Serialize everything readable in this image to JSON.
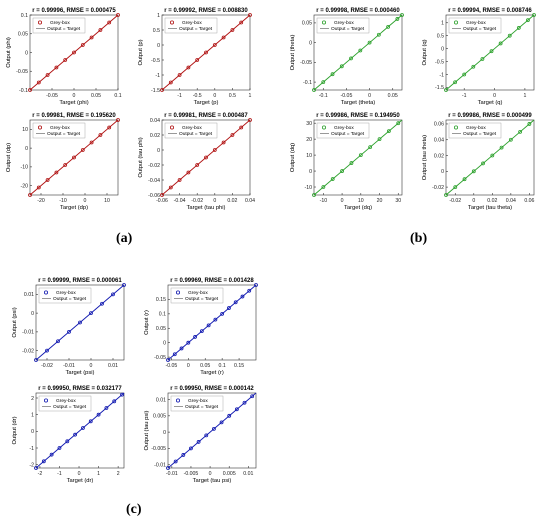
{
  "panel_labels": {
    "a": "(a)",
    "b": "(b)",
    "c": "(c)"
  },
  "legend_labels": {
    "points": "Grey-box",
    "line": "Output = Target"
  },
  "colors": {
    "a": "#b01010",
    "b": "#2aa02a",
    "c": "#1018b0",
    "fit_line": "#000000"
  },
  "chart_data": [
    {
      "type": "scatter",
      "group": "a",
      "title": "r = 0.99996, RMSE = 0.000475",
      "xlabel": "Target (phi)",
      "ylabel": "Output (phi)",
      "xlim": [
        -0.1,
        0.1
      ],
      "ylim": [
        -0.1,
        0.1
      ],
      "xticks": [
        -0.05,
        0,
        0.05,
        0.1
      ],
      "yticks": [
        -0.1,
        -0.05,
        0,
        0.05,
        0.1
      ],
      "x": [
        -0.1,
        -0.08,
        -0.06,
        -0.04,
        -0.02,
        0,
        0.02,
        0.04,
        0.06,
        0.08,
        0.1
      ],
      "y": [
        -0.1,
        -0.08,
        -0.06,
        -0.04,
        -0.02,
        0,
        0.02,
        0.04,
        0.06,
        0.08,
        0.1
      ]
    },
    {
      "type": "scatter",
      "group": "a",
      "title": "r = 0.99992, RMSE = 0.008830",
      "xlabel": "Target (p)",
      "ylabel": "Output (p)",
      "xlim": [
        -1.5,
        1
      ],
      "ylim": [
        -1.5,
        1
      ],
      "xticks": [
        -1,
        -0.5,
        0,
        0.5,
        1
      ],
      "yticks": [
        -1.5,
        -1,
        -0.5,
        0,
        0.5,
        1
      ],
      "x": [
        -1.5,
        -1.25,
        -1,
        -0.75,
        -0.5,
        -0.25,
        0,
        0.25,
        0.5,
        0.75,
        1
      ],
      "y": [
        -1.5,
        -1.25,
        -1,
        -0.75,
        -0.5,
        -0.25,
        0,
        0.25,
        0.5,
        0.75,
        1
      ]
    },
    {
      "type": "scatter",
      "group": "a",
      "title": "r = 0.99981, RMSE = 0.195620",
      "xlabel": "Target (dp)",
      "ylabel": "Output (dp)",
      "xlim": [
        -25,
        15
      ],
      "ylim": [
        -25,
        15
      ],
      "xticks": [
        -20,
        -10,
        0,
        10
      ],
      "yticks": [
        -20,
        -10,
        0,
        10
      ],
      "x": [
        -25,
        -21,
        -17,
        -13,
        -9,
        -5,
        -1,
        3,
        7,
        11,
        15
      ],
      "y": [
        -25,
        -21,
        -17,
        -13,
        -9,
        -5,
        -1,
        3,
        7,
        11,
        15
      ]
    },
    {
      "type": "scatter",
      "group": "a",
      "title": "r = 0.99981, RMSE = 0.000487",
      "xlabel": "Target (tau phi)",
      "ylabel": "Output (tau phi)",
      "xlim": [
        -0.06,
        0.04
      ],
      "ylim": [
        -0.06,
        0.04
      ],
      "xticks": [
        -0.06,
        -0.04,
        -0.02,
        0,
        0.02,
        0.04
      ],
      "yticks": [
        -0.06,
        -0.04,
        -0.02,
        0,
        0.02,
        0.04
      ],
      "x": [
        -0.06,
        -0.05,
        -0.04,
        -0.03,
        -0.02,
        -0.01,
        0,
        0.01,
        0.02,
        0.03,
        0.04
      ],
      "y": [
        -0.06,
        -0.05,
        -0.04,
        -0.03,
        -0.02,
        -0.01,
        0,
        0.01,
        0.02,
        0.03,
        0.04
      ]
    },
    {
      "type": "scatter",
      "group": "b",
      "title": "r = 0.99998, RMSE = 0.000460",
      "xlabel": "Target (theta)",
      "ylabel": "Output (theta)",
      "xlim": [
        -0.12,
        0.07
      ],
      "ylim": [
        -0.12,
        0.07
      ],
      "xticks": [
        -0.1,
        -0.05,
        0,
        0.05
      ],
      "yticks": [
        -0.1,
        -0.05,
        0,
        0.05
      ],
      "x": [
        -0.12,
        -0.1,
        -0.08,
        -0.06,
        -0.04,
        -0.02,
        0,
        0.02,
        0.04,
        0.06,
        0.07
      ],
      "y": [
        -0.12,
        -0.1,
        -0.08,
        -0.06,
        -0.04,
        -0.02,
        0,
        0.02,
        0.04,
        0.06,
        0.07
      ]
    },
    {
      "type": "scatter",
      "group": "b",
      "title": "r = 0.99994, RMSE = 0.008746",
      "xlabel": "Target (q)",
      "ylabel": "Output (q)",
      "xlim": [
        -1.6,
        1.3
      ],
      "ylim": [
        -1.6,
        1.3
      ],
      "xticks": [
        -1,
        0,
        1
      ],
      "yticks": [
        -1.5,
        -1,
        -0.5,
        0,
        0.5,
        1
      ],
      "x": [
        -1.6,
        -1.3,
        -1,
        -0.7,
        -0.4,
        -0.1,
        0.2,
        0.5,
        0.8,
        1.1,
        1.3
      ],
      "y": [
        -1.6,
        -1.3,
        -1,
        -0.7,
        -0.4,
        -0.1,
        0.2,
        0.5,
        0.8,
        1.1,
        1.3
      ]
    },
    {
      "type": "scatter",
      "group": "b",
      "title": "r = 0.99986, RMSE = 0.194950",
      "xlabel": "Target (dq)",
      "ylabel": "Output (dq)",
      "xlim": [
        -15,
        32
      ],
      "ylim": [
        -15,
        32
      ],
      "xticks": [
        -10,
        0,
        10,
        20,
        30
      ],
      "yticks": [
        -10,
        0,
        10,
        20,
        30
      ],
      "x": [
        -15,
        -10,
        -5,
        0,
        5,
        10,
        15,
        20,
        25,
        30
      ],
      "y": [
        -15,
        -10,
        -5,
        0,
        5,
        10,
        15,
        20,
        25,
        30
      ]
    },
    {
      "type": "scatter",
      "group": "b",
      "title": "r = 0.99986, RMSE = 0.000499",
      "xlabel": "Target (tau theta)",
      "ylabel": "Output (tau theta)",
      "xlim": [
        -0.03,
        0.065
      ],
      "ylim": [
        -0.03,
        0.065
      ],
      "xticks": [
        -0.02,
        0,
        0.02,
        0.04,
        0.06
      ],
      "yticks": [
        -0.02,
        0,
        0.02,
        0.04,
        0.06
      ],
      "x": [
        -0.03,
        -0.02,
        -0.01,
        0,
        0.01,
        0.02,
        0.03,
        0.04,
        0.05,
        0.06
      ],
      "y": [
        -0.03,
        -0.02,
        -0.01,
        0,
        0.01,
        0.02,
        0.03,
        0.04,
        0.05,
        0.06
      ]
    },
    {
      "type": "scatter",
      "group": "c",
      "title": "r = 0.99999, RMSE = 0.000061",
      "xlabel": "Target (psi)",
      "ylabel": "Output (psi)",
      "xlim": [
        -0.025,
        0.015
      ],
      "ylim": [
        -0.025,
        0.015
      ],
      "xticks": [
        -0.02,
        -0.01,
        0,
        0.01
      ],
      "yticks": [
        -0.02,
        -0.01,
        0,
        0.01
      ],
      "x": [
        -0.025,
        -0.02,
        -0.015,
        -0.01,
        -0.005,
        0,
        0.005,
        0.01,
        0.015
      ],
      "y": [
        -0.025,
        -0.02,
        -0.015,
        -0.01,
        -0.005,
        0,
        0.005,
        0.01,
        0.015
      ]
    },
    {
      "type": "scatter",
      "group": "c",
      "title": "r = 0.99969, RMSE = 0.001428",
      "xlabel": "Target (r)",
      "ylabel": "Output (r)",
      "xlim": [
        -0.06,
        0.2
      ],
      "ylim": [
        -0.06,
        0.2
      ],
      "xticks": [
        -0.05,
        0,
        0.05,
        0.1,
        0.15
      ],
      "yticks": [
        -0.05,
        0,
        0.05,
        0.1,
        0.15
      ],
      "x": [
        -0.06,
        -0.04,
        -0.02,
        0,
        0.02,
        0.04,
        0.06,
        0.08,
        0.1,
        0.12,
        0.14,
        0.16,
        0.18,
        0.2
      ],
      "y": [
        -0.06,
        -0.04,
        -0.02,
        0,
        0.02,
        0.04,
        0.06,
        0.08,
        0.1,
        0.12,
        0.14,
        0.16,
        0.18,
        0.2
      ]
    },
    {
      "type": "scatter",
      "group": "c",
      "title": "r = 0.99950, RMSE = 0.032177",
      "xlabel": "Target (dr)",
      "ylabel": "Output (dr)",
      "xlim": [
        -2.2,
        2.3
      ],
      "ylim": [
        -2.2,
        2.3
      ],
      "xticks": [
        -2,
        -1,
        0,
        1,
        2
      ],
      "yticks": [
        -2,
        -1,
        0,
        1,
        2
      ],
      "x": [
        -2.2,
        -1.8,
        -1.4,
        -1,
        -0.6,
        -0.2,
        0.2,
        0.6,
        1,
        1.4,
        1.8,
        2.2
      ],
      "y": [
        -2.2,
        -1.8,
        -1.4,
        -1,
        -0.6,
        -0.2,
        0.2,
        0.6,
        1,
        1.4,
        1.8,
        2.2
      ]
    },
    {
      "type": "scatter",
      "group": "c",
      "title": "r = 0.99950, RMSE = 0.000142",
      "xlabel": "Target (tau psi)",
      "ylabel": "Output (tau psi)",
      "xlim": [
        -0.011,
        0.012
      ],
      "ylim": [
        -0.011,
        0.012
      ],
      "xticks": [
        -0.01,
        -0.005,
        0,
        0.005,
        0.01
      ],
      "yticks": [
        -0.01,
        -0.005,
        0,
        0.005,
        0.01
      ],
      "x": [
        -0.011,
        -0.009,
        -0.007,
        -0.005,
        -0.003,
        -0.001,
        0.001,
        0.003,
        0.005,
        0.007,
        0.009,
        0.011
      ],
      "y": [
        -0.011,
        -0.009,
        -0.007,
        -0.005,
        -0.003,
        -0.001,
        0.001,
        0.003,
        0.005,
        0.007,
        0.009,
        0.011
      ]
    }
  ]
}
